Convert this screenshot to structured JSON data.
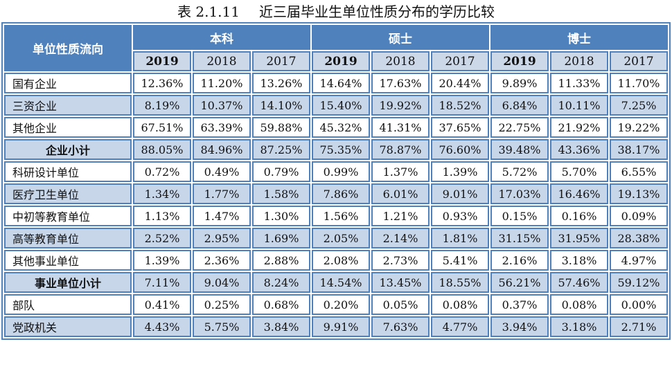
{
  "title": {
    "prefix": "表 2.1.11",
    "text": "近三届毕业生单位性质分布的学历比较"
  },
  "table": {
    "corner_header": "单位性质流向",
    "degree_groups": [
      {
        "label": "本科",
        "name": "bachelor"
      },
      {
        "label": "硕士",
        "name": "master"
      },
      {
        "label": "博士",
        "name": "doctor"
      }
    ],
    "year_headers": [
      {
        "label": "2019",
        "bold": true
      },
      {
        "label": "2018",
        "bold": false
      },
      {
        "label": "2017",
        "bold": false
      },
      {
        "label": "2019",
        "bold": true
      },
      {
        "label": "2018",
        "bold": false
      },
      {
        "label": "2017",
        "bold": false
      },
      {
        "label": "2019",
        "bold": true
      },
      {
        "label": "2018",
        "bold": false
      },
      {
        "label": "2017",
        "bold": false
      }
    ],
    "rows": [
      {
        "label": "国有企业",
        "subtotal": false,
        "values": [
          "12.36%",
          "11.20%",
          "13.26%",
          "14.64%",
          "17.63%",
          "20.44%",
          "9.89%",
          "11.33%",
          "11.70%"
        ]
      },
      {
        "label": "三资企业",
        "subtotal": false,
        "values": [
          "8.19%",
          "10.37%",
          "14.10%",
          "15.40%",
          "19.92%",
          "18.52%",
          "6.84%",
          "10.11%",
          "7.25%"
        ]
      },
      {
        "label": "其他企业",
        "subtotal": false,
        "values": [
          "67.51%",
          "63.39%",
          "59.88%",
          "45.32%",
          "41.31%",
          "37.65%",
          "22.75%",
          "21.92%",
          "19.22%"
        ]
      },
      {
        "label": "企业小计",
        "subtotal": true,
        "values": [
          "88.05%",
          "84.96%",
          "87.25%",
          "75.35%",
          "78.87%",
          "76.60%",
          "39.48%",
          "43.36%",
          "38.17%"
        ]
      },
      {
        "label": "科研设计单位",
        "subtotal": false,
        "values": [
          "0.72%",
          "0.49%",
          "0.79%",
          "0.99%",
          "1.37%",
          "1.39%",
          "5.72%",
          "5.70%",
          "6.55%"
        ]
      },
      {
        "label": "医疗卫生单位",
        "subtotal": false,
        "values": [
          "1.34%",
          "1.77%",
          "1.58%",
          "7.86%",
          "6.01%",
          "9.01%",
          "17.03%",
          "16.46%",
          "19.13%"
        ]
      },
      {
        "label": "中初等教育单位",
        "subtotal": false,
        "values": [
          "1.13%",
          "1.47%",
          "1.30%",
          "1.56%",
          "1.21%",
          "0.93%",
          "0.15%",
          "0.16%",
          "0.09%"
        ]
      },
      {
        "label": "高等教育单位",
        "subtotal": false,
        "values": [
          "2.52%",
          "2.95%",
          "1.69%",
          "2.05%",
          "2.14%",
          "1.81%",
          "31.15%",
          "31.95%",
          "28.38%"
        ]
      },
      {
        "label": "其他事业单位",
        "subtotal": false,
        "values": [
          "1.39%",
          "2.36%",
          "2.88%",
          "2.08%",
          "2.73%",
          "5.41%",
          "2.16%",
          "3.18%",
          "4.97%"
        ]
      },
      {
        "label": "事业单位小计",
        "subtotal": true,
        "values": [
          "7.11%",
          "9.04%",
          "8.24%",
          "14.54%",
          "13.45%",
          "18.55%",
          "56.21%",
          "57.46%",
          "59.12%"
        ]
      },
      {
        "label": "部队",
        "subtotal": false,
        "values": [
          "0.41%",
          "0.25%",
          "0.68%",
          "0.20%",
          "0.05%",
          "0.08%",
          "0.37%",
          "0.08%",
          "0.00%"
        ]
      },
      {
        "label": "党政机关",
        "subtotal": false,
        "values": [
          "4.43%",
          "5.75%",
          "3.84%",
          "9.91%",
          "7.63%",
          "4.77%",
          "3.94%",
          "3.18%",
          "2.71%"
        ]
      }
    ],
    "colors": {
      "header_bg": "#4f81bd",
      "header_text": "#ffffff",
      "row_alt_bg": "#c8d6ea",
      "year_row_bg": "#ccd8e8",
      "border": "#4f81bd",
      "text": "#111111"
    }
  }
}
